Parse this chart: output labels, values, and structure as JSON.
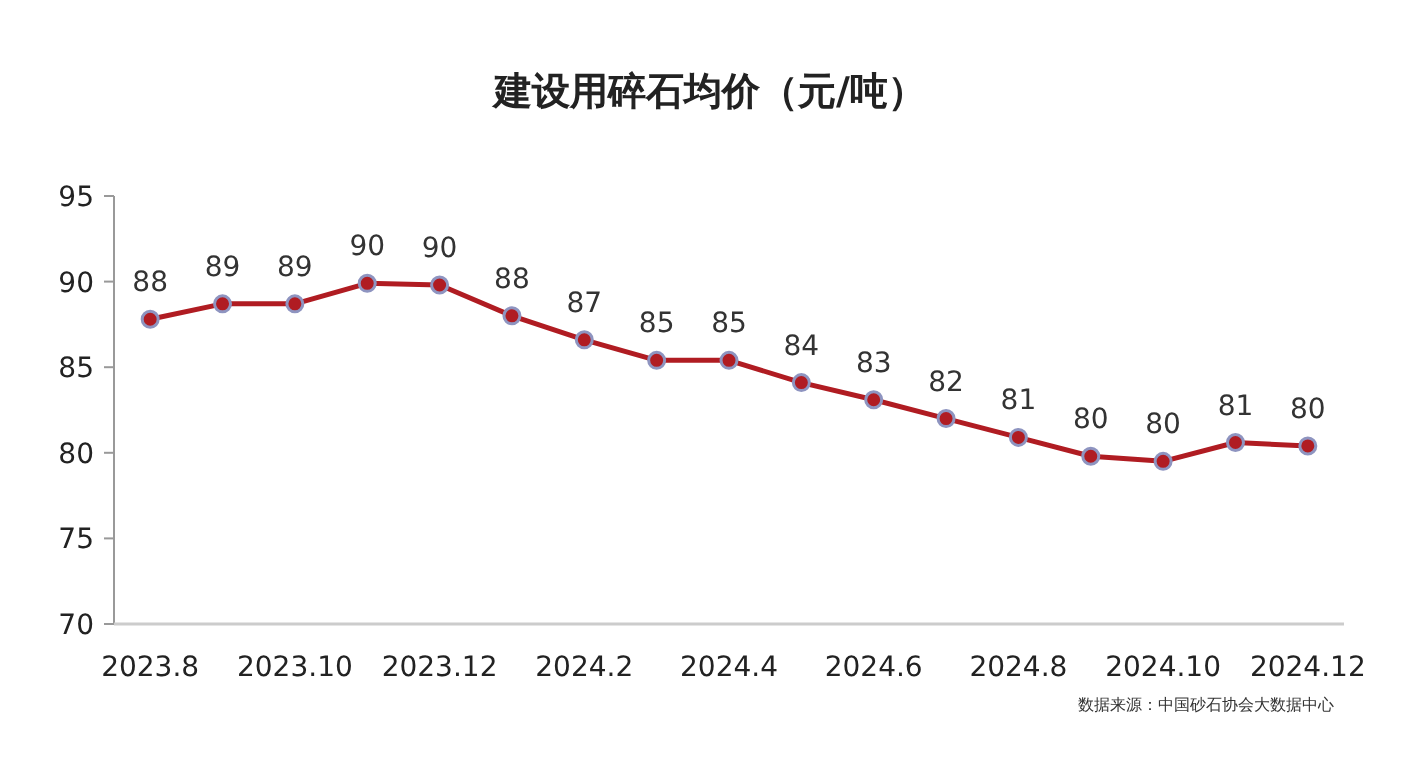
{
  "chart_data": {
    "type": "line",
    "title": "建设用碎石均价（元/吨）",
    "annotations": [
      "数据来源：中国砂石协会大数据中心"
    ],
    "categories": [
      "2023.8",
      null,
      "2023.10",
      null,
      "2023.12",
      null,
      "2024.2",
      null,
      "2024.4",
      null,
      "2024.6",
      null,
      "2024.8",
      null,
      "2024.10",
      null,
      "2024.12"
    ],
    "series": [
      {
        "color": "#b01c22",
        "values": [
          87.8,
          88.7,
          88.7,
          89.9,
          89.8,
          88.0,
          86.6,
          85.4,
          85.4,
          84.1,
          83.1,
          82.0,
          80.9,
          79.8,
          79.5,
          80.6,
          80.4
        ],
        "value_labels": [
          "88",
          "89",
          "89",
          "90",
          "90",
          "88",
          "87",
          "85",
          "85",
          "84",
          "83",
          "82",
          "81",
          "80",
          "80",
          "81",
          "80"
        ]
      }
    ],
    "ylim": [
      70,
      95
    ],
    "yticks": [
      70,
      75,
      80,
      85,
      90,
      95
    ],
    "grid": false,
    "marker": "circle",
    "line_style": "solid"
  }
}
